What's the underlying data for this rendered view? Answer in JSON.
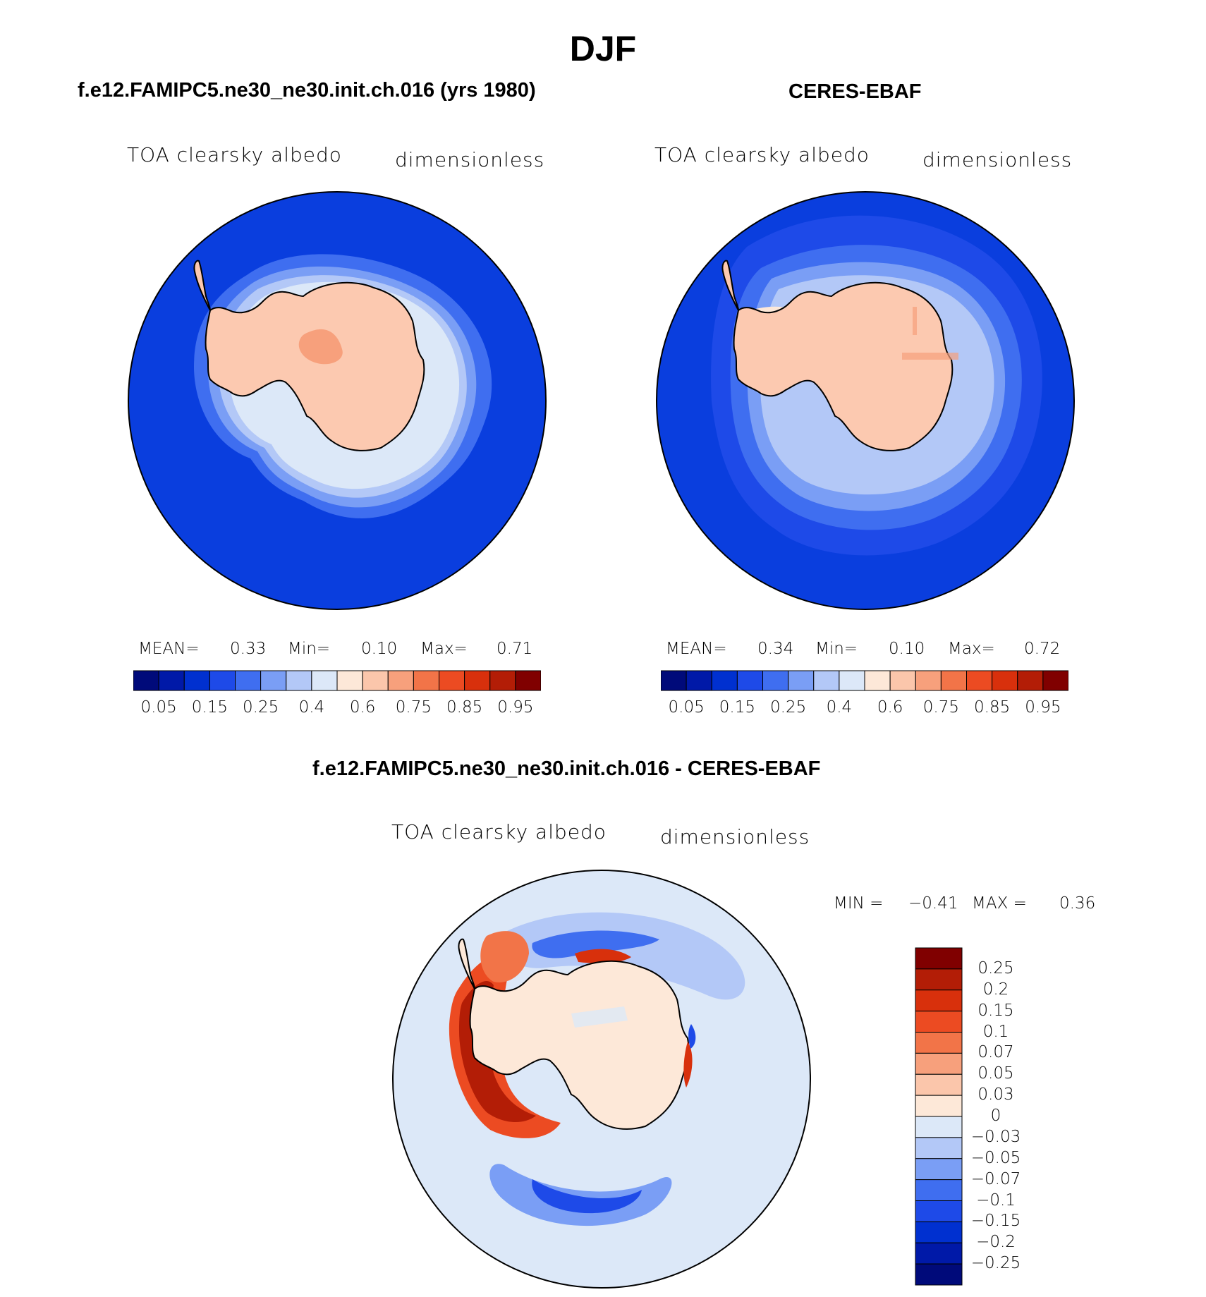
{
  "title": "DJF",
  "panels": [
    {
      "name": "f.e12.FAMIPC5.ne30_ne30.init.ch.016 (yrs 1980)",
      "variable": "TOA clearsky albedo",
      "units": "dimensionless",
      "stats": {
        "mean_label": "MEAN=",
        "mean": "0.33",
        "min_label": "Min=",
        "min": "0.10",
        "max_label": "Max=",
        "max": "0.71"
      }
    },
    {
      "name": "CERES-EBAF",
      "variable": "TOA clearsky albedo",
      "units": "dimensionless",
      "stats": {
        "mean_label": "MEAN=",
        "mean": "0.34",
        "min_label": "Min=",
        "min": "0.10",
        "max_label": "Max=",
        "max": "0.72"
      }
    }
  ],
  "diff_panel": {
    "name": "f.e12.FAMIPC5.ne30_ne30.init.ch.016 - CERES-EBAF",
    "variable": "TOA clearsky albedo",
    "units": "dimensionless",
    "min_label": "MIN =",
    "min": "−0.41",
    "max_label": "MAX =",
    "max": "0.36"
  },
  "abs_colorbar": {
    "colors": [
      "#000a7a",
      "#0019a8",
      "#0030d0",
      "#1e4ae8",
      "#3f6ef0",
      "#7a9ef5",
      "#b3c8f7",
      "#dce8f8",
      "#fde8d8",
      "#fbc6ab",
      "#f7a07c",
      "#f27448",
      "#ec4b22",
      "#d8300c",
      "#b31d06",
      "#800000"
    ],
    "labels": [
      "0.05",
      "0.15",
      "0.25",
      "0.4",
      "0.6",
      "0.75",
      "0.85",
      "0.95"
    ]
  },
  "diff_colorbar": {
    "colors": [
      "#800000",
      "#b31d06",
      "#d8300c",
      "#ec4b22",
      "#f27448",
      "#f7a07c",
      "#fbc6ab",
      "#fde8d8",
      "#dce8f8",
      "#b3c8f7",
      "#7a9ef5",
      "#3f6ef0",
      "#1e4ae8",
      "#0030d0",
      "#0019a8",
      "#000a7a"
    ],
    "labels": [
      "0.25",
      "0.2",
      "0.15",
      "0.1",
      "0.07",
      "0.05",
      "0.03",
      "0",
      "−0.03",
      "−0.05",
      "−0.07",
      "−0.1",
      "−0.15",
      "−0.2",
      "−0.25"
    ]
  }
}
